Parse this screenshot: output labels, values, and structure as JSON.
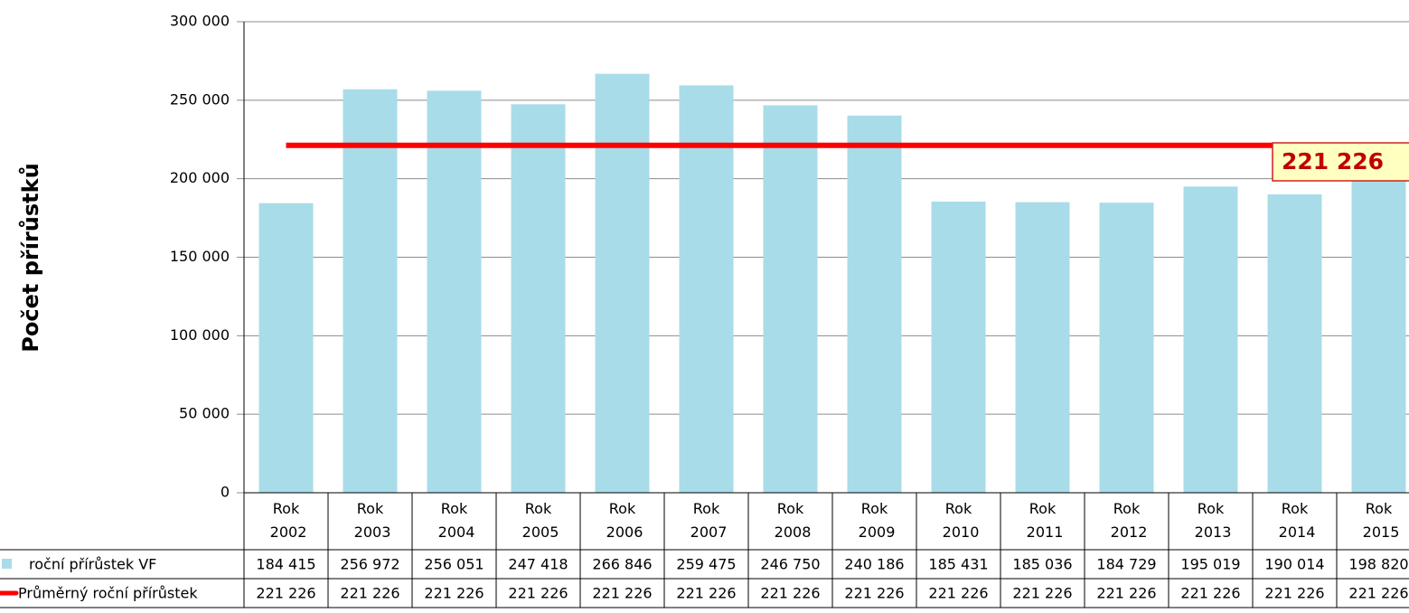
{
  "chart_data": {
    "type": "bar",
    "y_label": "Počet přírůstků",
    "categories": [
      "Rok 2002",
      "Rok 2003",
      "Rok 2004",
      "Rok 2005",
      "Rok 2006",
      "Rok 2007",
      "Rok 2008",
      "Rok 2009",
      "Rok 2010",
      "Rok 2011",
      "Rok 2012",
      "Rok 2013",
      "Rok 2014",
      "Rok 2015"
    ],
    "series": [
      {
        "name": "roční přírůstek VF",
        "type": "bar",
        "color": "#a8dce8",
        "values": [
          184415,
          256972,
          256051,
          247418,
          266846,
          259475,
          246750,
          240186,
          185431,
          185036,
          184729,
          195019,
          190014,
          198820
        ],
        "value_labels": [
          "184 415",
          "256 972",
          "256 051",
          "247 418",
          "266 846",
          "259 475",
          "246 750",
          "240 186",
          "185 431",
          "185 036",
          "184 729",
          "195 019",
          "190 014",
          "198 820"
        ]
      },
      {
        "name": "Průměrný roční přírůstek",
        "type": "line",
        "color": "#ff0000",
        "values": [
          221226,
          221226,
          221226,
          221226,
          221226,
          221226,
          221226,
          221226,
          221226,
          221226,
          221226,
          221226,
          221226,
          221226
        ],
        "value_labels": [
          "221 226",
          "221 226",
          "221 226",
          "221 226",
          "221 226",
          "221 226",
          "221 226",
          "221 226",
          "221 226",
          "221 226",
          "221 226",
          "221 226",
          "221 226",
          "221 226"
        ]
      }
    ],
    "annotation": "221 226",
    "ylim": [
      0,
      300000
    ],
    "yticks": [
      0,
      {
        "value": 50000,
        "label": "50 000"
      },
      {
        "value": 100000,
        "label": "100 000"
      },
      {
        "value": 150000,
        "label": "150 000"
      },
      {
        "value": 200000,
        "label": "200 000"
      },
      {
        "value": 250000,
        "label": "250 000"
      },
      {
        "value": 300000,
        "label": "300 000"
      }
    ],
    "grid": true
  }
}
